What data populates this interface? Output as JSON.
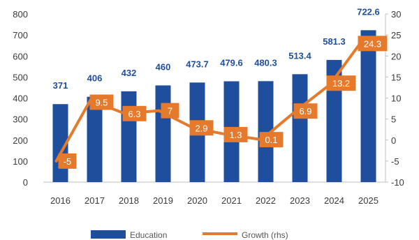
{
  "chart_data": {
    "type": "bar",
    "categories": [
      "2016",
      "2017",
      "2018",
      "2019",
      "2020",
      "2021",
      "2022",
      "2023",
      "2024",
      "2025"
    ],
    "series": [
      {
        "name": "Education",
        "type": "bar",
        "axis": "left",
        "values": [
          371,
          406,
          432,
          460,
          473.7,
          479.6,
          480.3,
          513.4,
          581.3,
          722.6
        ],
        "labels": [
          "371",
          "406",
          "432",
          "460",
          "473.7",
          "479.6",
          "480.3",
          "513.4",
          "581.3",
          "722.6"
        ]
      },
      {
        "name": "Growth (rhs)",
        "type": "line",
        "axis": "right",
        "values": [
          -5,
          9.5,
          6.3,
          7,
          2.9,
          1.3,
          0.1,
          6.9,
          13.2,
          24.3
        ],
        "labels": [
          "-5",
          "9.5",
          "6.3",
          "7",
          "2.9",
          "1.3",
          "0.1",
          "6.9",
          "13.2",
          "24.3"
        ]
      }
    ],
    "ylim_left": [
      0,
      800
    ],
    "yticks_left": [
      "0",
      "100",
      "200",
      "300",
      "400",
      "500",
      "600",
      "700",
      "800"
    ],
    "ylim_right": [
      -10,
      30
    ],
    "yticks_right": [
      "-10",
      "-5",
      "0",
      "5",
      "10",
      "15",
      "20",
      "25",
      "30"
    ],
    "grid": false,
    "legend_position": "bottom",
    "colors": {
      "bar": "#1f4e9c",
      "line": "#e57a2c",
      "axis": "#bfbfbf"
    }
  }
}
